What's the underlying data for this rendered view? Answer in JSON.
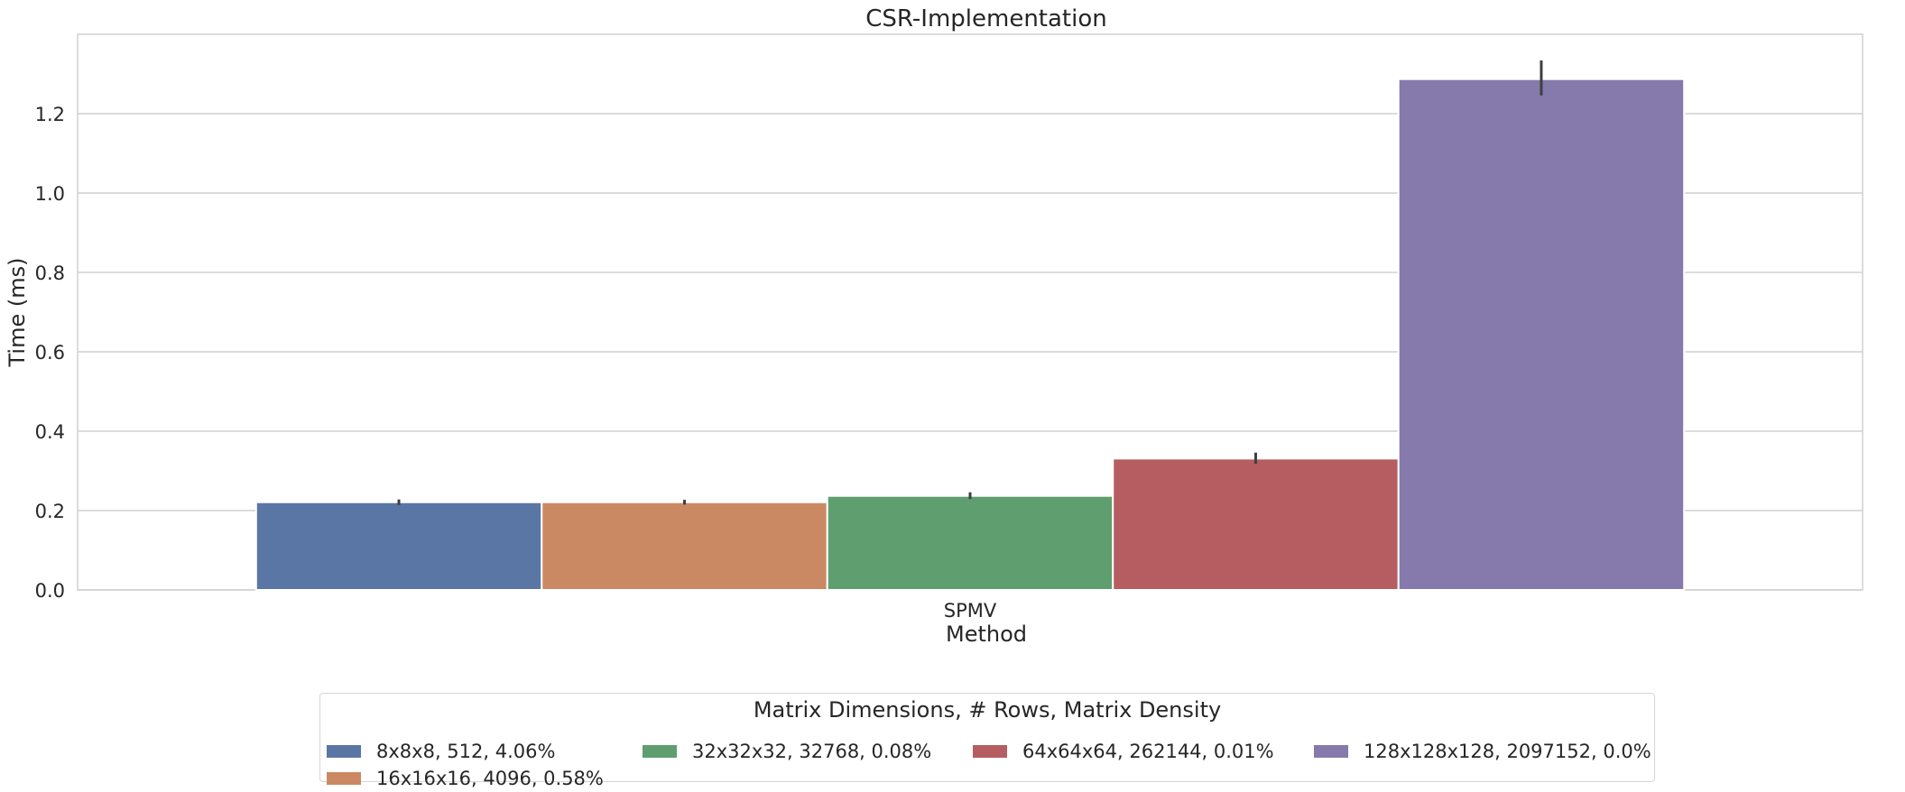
{
  "chart_data": {
    "type": "bar",
    "title": "CSR-Implementation",
    "xlabel": "Method",
    "ylabel": "Time (ms)",
    "categories": [
      "SPMV"
    ],
    "ylim": [
      0,
      1.4
    ],
    "yticks": [
      0.0,
      0.2,
      0.4,
      0.6,
      0.8,
      1.0,
      1.2
    ],
    "ytick_labels": [
      "0.0",
      "0.2",
      "0.4",
      "0.6",
      "0.8",
      "1.0",
      "1.2"
    ],
    "grid": true,
    "legend_placement": "bottom-center",
    "legend_title": "Matrix Dimensions, # Rows, Matrix Density",
    "series": [
      {
        "name": "8x8x8, 512, 4.06%",
        "values": [
          0.221
        ],
        "error": [
          [
            0.214,
            0.228
          ]
        ],
        "color": "#5a76a5"
      },
      {
        "name": "16x16x16, 4096, 0.58%",
        "values": [
          0.221
        ],
        "error": [
          [
            0.215,
            0.227
          ]
        ],
        "color": "#cb8963"
      },
      {
        "name": "32x32x32, 32768, 0.08%",
        "values": [
          0.237
        ],
        "error": [
          [
            0.229,
            0.246
          ]
        ],
        "color": "#5f9e6e"
      },
      {
        "name": "64x64x64, 262144, 0.01%",
        "values": [
          0.331
        ],
        "error": [
          [
            0.318,
            0.346
          ]
        ],
        "color": "#b55d60"
      },
      {
        "name": "128x128x128, 2097152, 0.0%",
        "values": [
          1.287
        ],
        "error": [
          [
            1.246,
            1.334
          ]
        ],
        "color": "#857aab"
      }
    ]
  }
}
